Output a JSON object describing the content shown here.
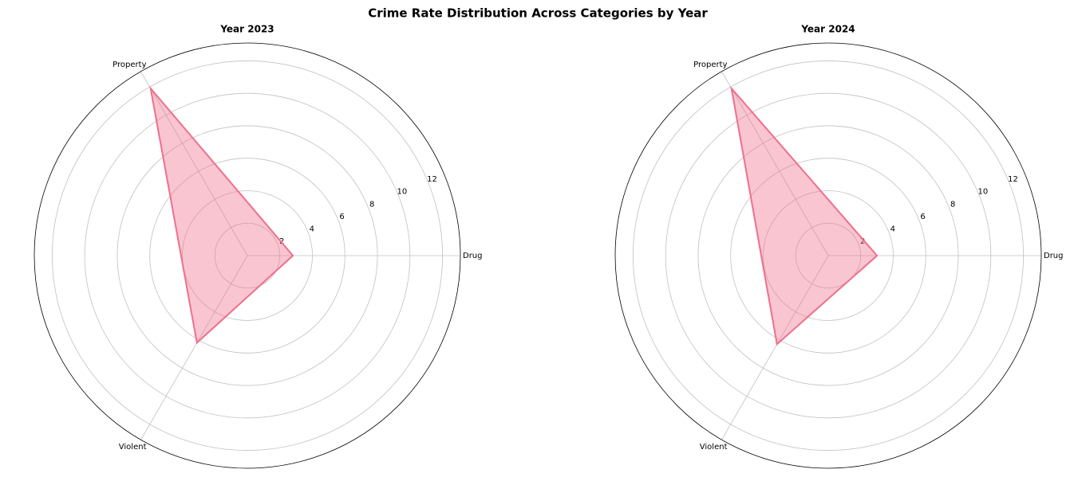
{
  "title": "Crime Rate Distribution Across Categories by Year",
  "chart_data": [
    {
      "type": "radar",
      "title": "Year 2023",
      "categories": [
        "Drug",
        "Property",
        "Violent"
      ],
      "values": [
        2.8,
        11.9,
        6.2
      ],
      "color": "#ef6f8c",
      "ylim": [
        0,
        13.1
      ],
      "yticks": [
        2,
        4,
        6,
        8,
        10,
        12
      ],
      "grid": true
    },
    {
      "type": "radar",
      "title": "Year 2024",
      "categories": [
        "Drug",
        "Property",
        "Violent"
      ],
      "values": [
        3.0,
        11.9,
        6.3
      ],
      "color": "#ef6f8c",
      "ylim": [
        0,
        13.1
      ],
      "yticks": [
        2,
        4,
        6,
        8,
        10,
        12
      ],
      "grid": true
    }
  ]
}
